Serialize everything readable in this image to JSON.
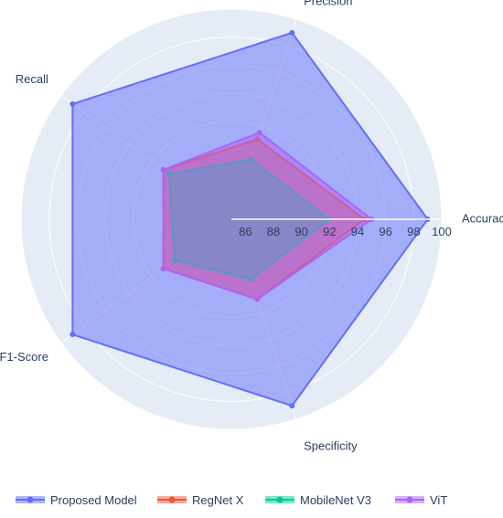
{
  "chart_data": {
    "type": "radar",
    "axes": [
      "Accuracy",
      "Precision",
      "Recall",
      "F1-Score",
      "Specificity"
    ],
    "radial_range": [
      85,
      100
    ],
    "radial_ticks": [
      86,
      88,
      90,
      92,
      94,
      96,
      98,
      100
    ],
    "grid": true,
    "legend_position": "bottom",
    "series": [
      {
        "name": "Proposed Model",
        "values": [
          99.0,
          99.0,
          99.0,
          99.0,
          99.0
        ],
        "color": "#636efa"
      },
      {
        "name": "RegNet X",
        "values": [
          94.5,
          91.0,
          91.0,
          91.0,
          91.0
        ],
        "color": "#ef553b"
      },
      {
        "name": "MobileNet V3",
        "values": [
          92.0,
          89.5,
          90.5,
          90.0,
          89.5
        ],
        "color": "#00cc96"
      },
      {
        "name": "ViT",
        "values": [
          95.0,
          91.5,
          91.0,
          91.0,
          91.0
        ],
        "color": "#ab63fa"
      }
    ]
  }
}
